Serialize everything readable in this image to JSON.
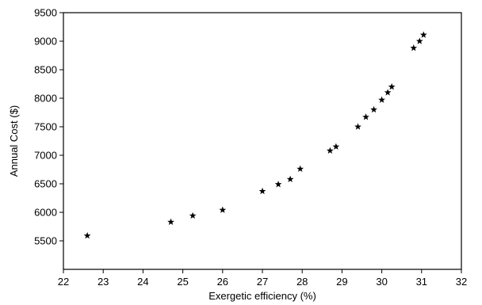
{
  "chart_data": {
    "type": "scatter",
    "title": "",
    "xlabel": "Exergetic efficiency (%)",
    "ylabel": "Annual Cost ($)",
    "xlim": [
      22,
      32
    ],
    "ylim": [
      5000,
      9500
    ],
    "xticks": [
      "22",
      "23",
      "24",
      "25",
      "26",
      "27",
      "28",
      "29",
      "30",
      "31",
      "32"
    ],
    "yticks": [
      "5500",
      "6000",
      "6500",
      "7000",
      "7500",
      "8000",
      "8500",
      "9000",
      "9500"
    ],
    "grid": false,
    "marker": "star",
    "series": [
      {
        "points": [
          [
            22.6,
            5590
          ],
          [
            24.7,
            5830
          ],
          [
            25.25,
            5940
          ],
          [
            26.0,
            6040
          ],
          [
            27.0,
            6370
          ],
          [
            27.4,
            6490
          ],
          [
            27.7,
            6580
          ],
          [
            27.95,
            6760
          ],
          [
            28.7,
            7080
          ],
          [
            28.85,
            7150
          ],
          [
            29.4,
            7500
          ],
          [
            29.6,
            7670
          ],
          [
            29.8,
            7800
          ],
          [
            30.0,
            7970
          ],
          [
            30.15,
            8100
          ],
          [
            30.25,
            8200
          ],
          [
            30.8,
            8880
          ],
          [
            30.95,
            9000
          ],
          [
            31.05,
            9110
          ]
        ]
      }
    ]
  }
}
